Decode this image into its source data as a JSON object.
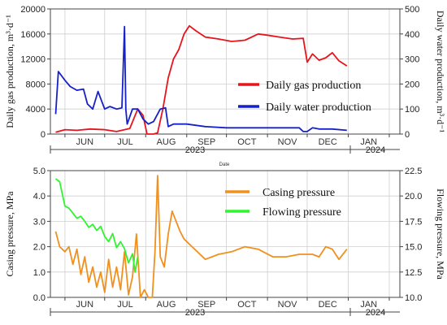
{
  "chart_data": [
    {
      "type": "line",
      "y_left_label": "Daily gas production, m³·d⁻¹",
      "y_right_label": "Daily water production, m³·d⁻¹",
      "y_left_range": [
        0,
        20000
      ],
      "y_right_range": [
        0,
        500
      ],
      "y_left_ticks": [
        "0",
        "4000",
        "8000",
        "12000",
        "16000",
        "20000"
      ],
      "y_right_ticks": [
        "0",
        "100",
        "200",
        "300",
        "400",
        "500"
      ],
      "x_month_labels": [
        "JUN",
        "JUL",
        "AUG",
        "SEP",
        "OCT",
        "NOV",
        "DEC",
        "JAN"
      ],
      "x_year_labels": [
        "2023",
        "2024"
      ],
      "legend_position": "center-right",
      "series": [
        {
          "name": "Daily gas production",
          "color": "#e8141c",
          "axis": "left",
          "x": [
            "2023-05-25",
            "2023-06-01",
            "2023-06-10",
            "2023-06-20",
            "2023-07-01",
            "2023-07-10",
            "2023-07-20",
            "2023-07-26",
            "2023-07-30",
            "2023-08-02",
            "2023-08-07",
            "2023-08-10",
            "2023-08-14",
            "2023-08-18",
            "2023-08-22",
            "2023-08-26",
            "2023-08-30",
            "2023-09-03",
            "2023-09-08",
            "2023-09-15",
            "2023-09-25",
            "2023-10-05",
            "2023-10-15",
            "2023-10-25",
            "2023-11-01",
            "2023-11-10",
            "2023-11-20",
            "2023-11-28",
            "2023-12-01",
            "2023-12-05",
            "2023-12-10",
            "2023-12-15",
            "2023-12-20",
            "2023-12-25",
            "2023-12-31"
          ],
          "y": [
            300,
            700,
            600,
            800,
            700,
            400,
            900,
            4000,
            3000,
            0,
            0,
            200,
            4000,
            9000,
            12000,
            13500,
            16000,
            17300,
            16500,
            15500,
            15200,
            14800,
            15000,
            16000,
            15800,
            15500,
            15200,
            15300,
            11500,
            12800,
            11800,
            12200,
            13000,
            11700,
            10900
          ]
        },
        {
          "name": "Daily water production",
          "color": "#1620c8",
          "axis": "right",
          "x": [
            "2023-05-25",
            "2023-05-27",
            "2023-06-01",
            "2023-06-05",
            "2023-06-10",
            "2023-06-15",
            "2023-06-18",
            "2023-06-22",
            "2023-06-26",
            "2023-07-01",
            "2023-07-05",
            "2023-07-10",
            "2023-07-14",
            "2023-07-16",
            "2023-07-17",
            "2023-07-18",
            "2023-07-22",
            "2023-07-26",
            "2023-07-30",
            "2023-08-03",
            "2023-08-07",
            "2023-08-12",
            "2023-08-16",
            "2023-08-18",
            "2023-08-22",
            "2023-09-01",
            "2023-09-15",
            "2023-10-01",
            "2023-10-15",
            "2023-11-01",
            "2023-11-15",
            "2023-11-25",
            "2023-11-28",
            "2023-12-01",
            "2023-12-05",
            "2023-12-10",
            "2023-12-20",
            "2023-12-31"
          ],
          "y": [
            80,
            250,
            215,
            190,
            175,
            180,
            120,
            100,
            170,
            100,
            110,
            100,
            105,
            430,
            100,
            40,
            100,
            100,
            60,
            40,
            50,
            100,
            105,
            30,
            40,
            40,
            30,
            25,
            25,
            25,
            25,
            25,
            10,
            10,
            25,
            20,
            20,
            15
          ]
        }
      ]
    },
    {
      "type": "line",
      "xlabel": "Date",
      "y_left_label": "Casing pressure, MPa",
      "y_right_label": "Flowing pressure, MPa",
      "y_left_range": [
        0,
        5
      ],
      "y_right_range": [
        10,
        22.5
      ],
      "y_left_ticks": [
        "0.0",
        "1.0",
        "2.0",
        "3.0",
        "4.0",
        "5.0"
      ],
      "y_right_ticks": [
        "10.0",
        "12.5",
        "15.0",
        "17.5",
        "20.0",
        "22.5"
      ],
      "x_month_labels": [
        "JUN",
        "JUL",
        "AUG",
        "SEP",
        "OCT",
        "NOV",
        "DEC",
        "JAN"
      ],
      "x_year_labels": [
        "2023",
        "2024"
      ],
      "legend_position": "top-right",
      "series": [
        {
          "name": "Casing pressure",
          "color": "#f0901e",
          "axis": "left",
          "x": [
            "2023-05-25",
            "2023-05-28",
            "2023-06-01",
            "2023-06-04",
            "2023-06-07",
            "2023-06-10",
            "2023-06-13",
            "2023-06-16",
            "2023-06-19",
            "2023-06-22",
            "2023-06-25",
            "2023-06-28",
            "2023-07-01",
            "2023-07-04",
            "2023-07-07",
            "2023-07-10",
            "2023-07-13",
            "2023-07-16",
            "2023-07-19",
            "2023-07-22",
            "2023-07-25",
            "2023-07-28",
            "2023-07-31",
            "2023-08-03",
            "2023-08-06",
            "2023-08-08",
            "2023-08-10",
            "2023-08-12",
            "2023-08-15",
            "2023-08-18",
            "2023-08-21",
            "2023-08-24",
            "2023-08-27",
            "2023-08-30",
            "2023-09-05",
            "2023-09-15",
            "2023-09-25",
            "2023-10-05",
            "2023-10-15",
            "2023-10-25",
            "2023-11-05",
            "2023-11-15",
            "2023-11-25",
            "2023-12-05",
            "2023-12-10",
            "2023-12-15",
            "2023-12-20",
            "2023-12-25",
            "2023-12-31"
          ],
          "y": [
            2.6,
            2.0,
            1.8,
            2.0,
            1.3,
            1.9,
            0.9,
            1.6,
            0.6,
            1.2,
            0.4,
            1.0,
            0.2,
            1.5,
            0.4,
            1.2,
            0.3,
            1.8,
            0.1,
            0.8,
            2.5,
            0.0,
            0.3,
            0.0,
            0.0,
            1.8,
            4.8,
            1.6,
            1.2,
            2.5,
            3.4,
            3.0,
            2.6,
            2.3,
            2.0,
            1.5,
            1.7,
            1.8,
            2.0,
            1.9,
            1.6,
            1.6,
            1.7,
            1.7,
            1.6,
            2.0,
            1.9,
            1.5,
            1.9
          ]
        },
        {
          "name": "Flowing pressure",
          "color": "#2ef52e",
          "axis": "right",
          "x": [
            "2023-05-25",
            "2023-05-28",
            "2023-06-01",
            "2023-06-04",
            "2023-06-07",
            "2023-06-10",
            "2023-06-13",
            "2023-06-16",
            "2023-06-19",
            "2023-06-22",
            "2023-06-25",
            "2023-06-28",
            "2023-07-01",
            "2023-07-04",
            "2023-07-07",
            "2023-07-10",
            "2023-07-13",
            "2023-07-16",
            "2023-07-19",
            "2023-07-22",
            "2023-07-24",
            "2023-07-26"
          ],
          "y": [
            21.7,
            21.4,
            19.0,
            18.8,
            18.3,
            17.8,
            18.0,
            17.5,
            16.9,
            17.2,
            16.6,
            17.0,
            16.0,
            15.5,
            16.3,
            14.9,
            15.5,
            14.8,
            13.4,
            14.3,
            12.5,
            14.0
          ]
        }
      ]
    }
  ]
}
